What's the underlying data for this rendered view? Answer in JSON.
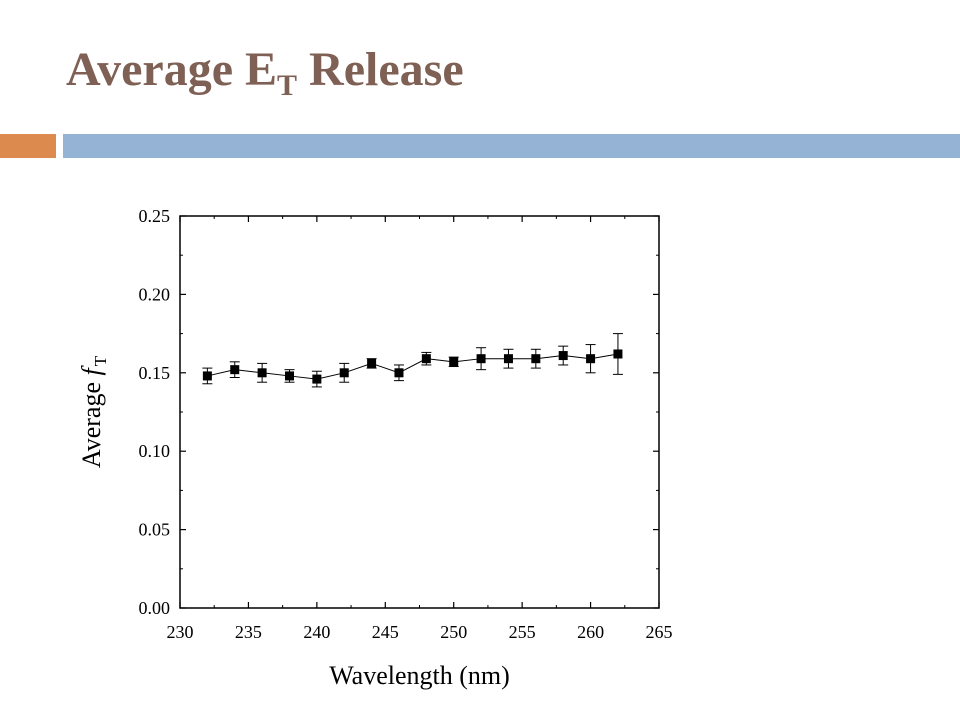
{
  "slide": {
    "title_main": "Average E",
    "title_sub": "T",
    "title_tail": " Release"
  },
  "colors": {
    "title": "#7f6055",
    "accent_orange": "#dc8a4e",
    "accent_blue": "#94b3d5"
  },
  "chart_data": {
    "type": "scatter",
    "title": "",
    "xlabel": "Wavelength (nm)",
    "ylabel_prefix": "Average ",
    "ylabel_symbol": "f",
    "ylabel_sub": "T",
    "xlim": [
      230,
      265
    ],
    "ylim": [
      0.0,
      0.25
    ],
    "x_ticks": [
      "230",
      "235",
      "240",
      "245",
      "250",
      "255",
      "260",
      "265"
    ],
    "y_ticks": [
      "0.00",
      "0.05",
      "0.10",
      "0.15",
      "0.20",
      "0.25"
    ],
    "grid": false,
    "marker": "square",
    "connected": true,
    "series": [
      {
        "x": [
          232,
          234,
          236,
          238,
          240,
          242,
          244,
          246,
          248,
          250,
          252,
          254,
          256,
          258,
          260,
          262
        ],
        "y": [
          0.148,
          0.152,
          0.15,
          0.148,
          0.146,
          0.15,
          0.156,
          0.15,
          0.159,
          0.157,
          0.159,
          0.159,
          0.159,
          0.161,
          0.159,
          0.162
        ],
        "err": [
          0.005,
          0.005,
          0.006,
          0.004,
          0.005,
          0.006,
          0.003,
          0.005,
          0.004,
          0.003,
          0.007,
          0.006,
          0.006,
          0.006,
          0.009,
          0.013
        ]
      }
    ]
  }
}
